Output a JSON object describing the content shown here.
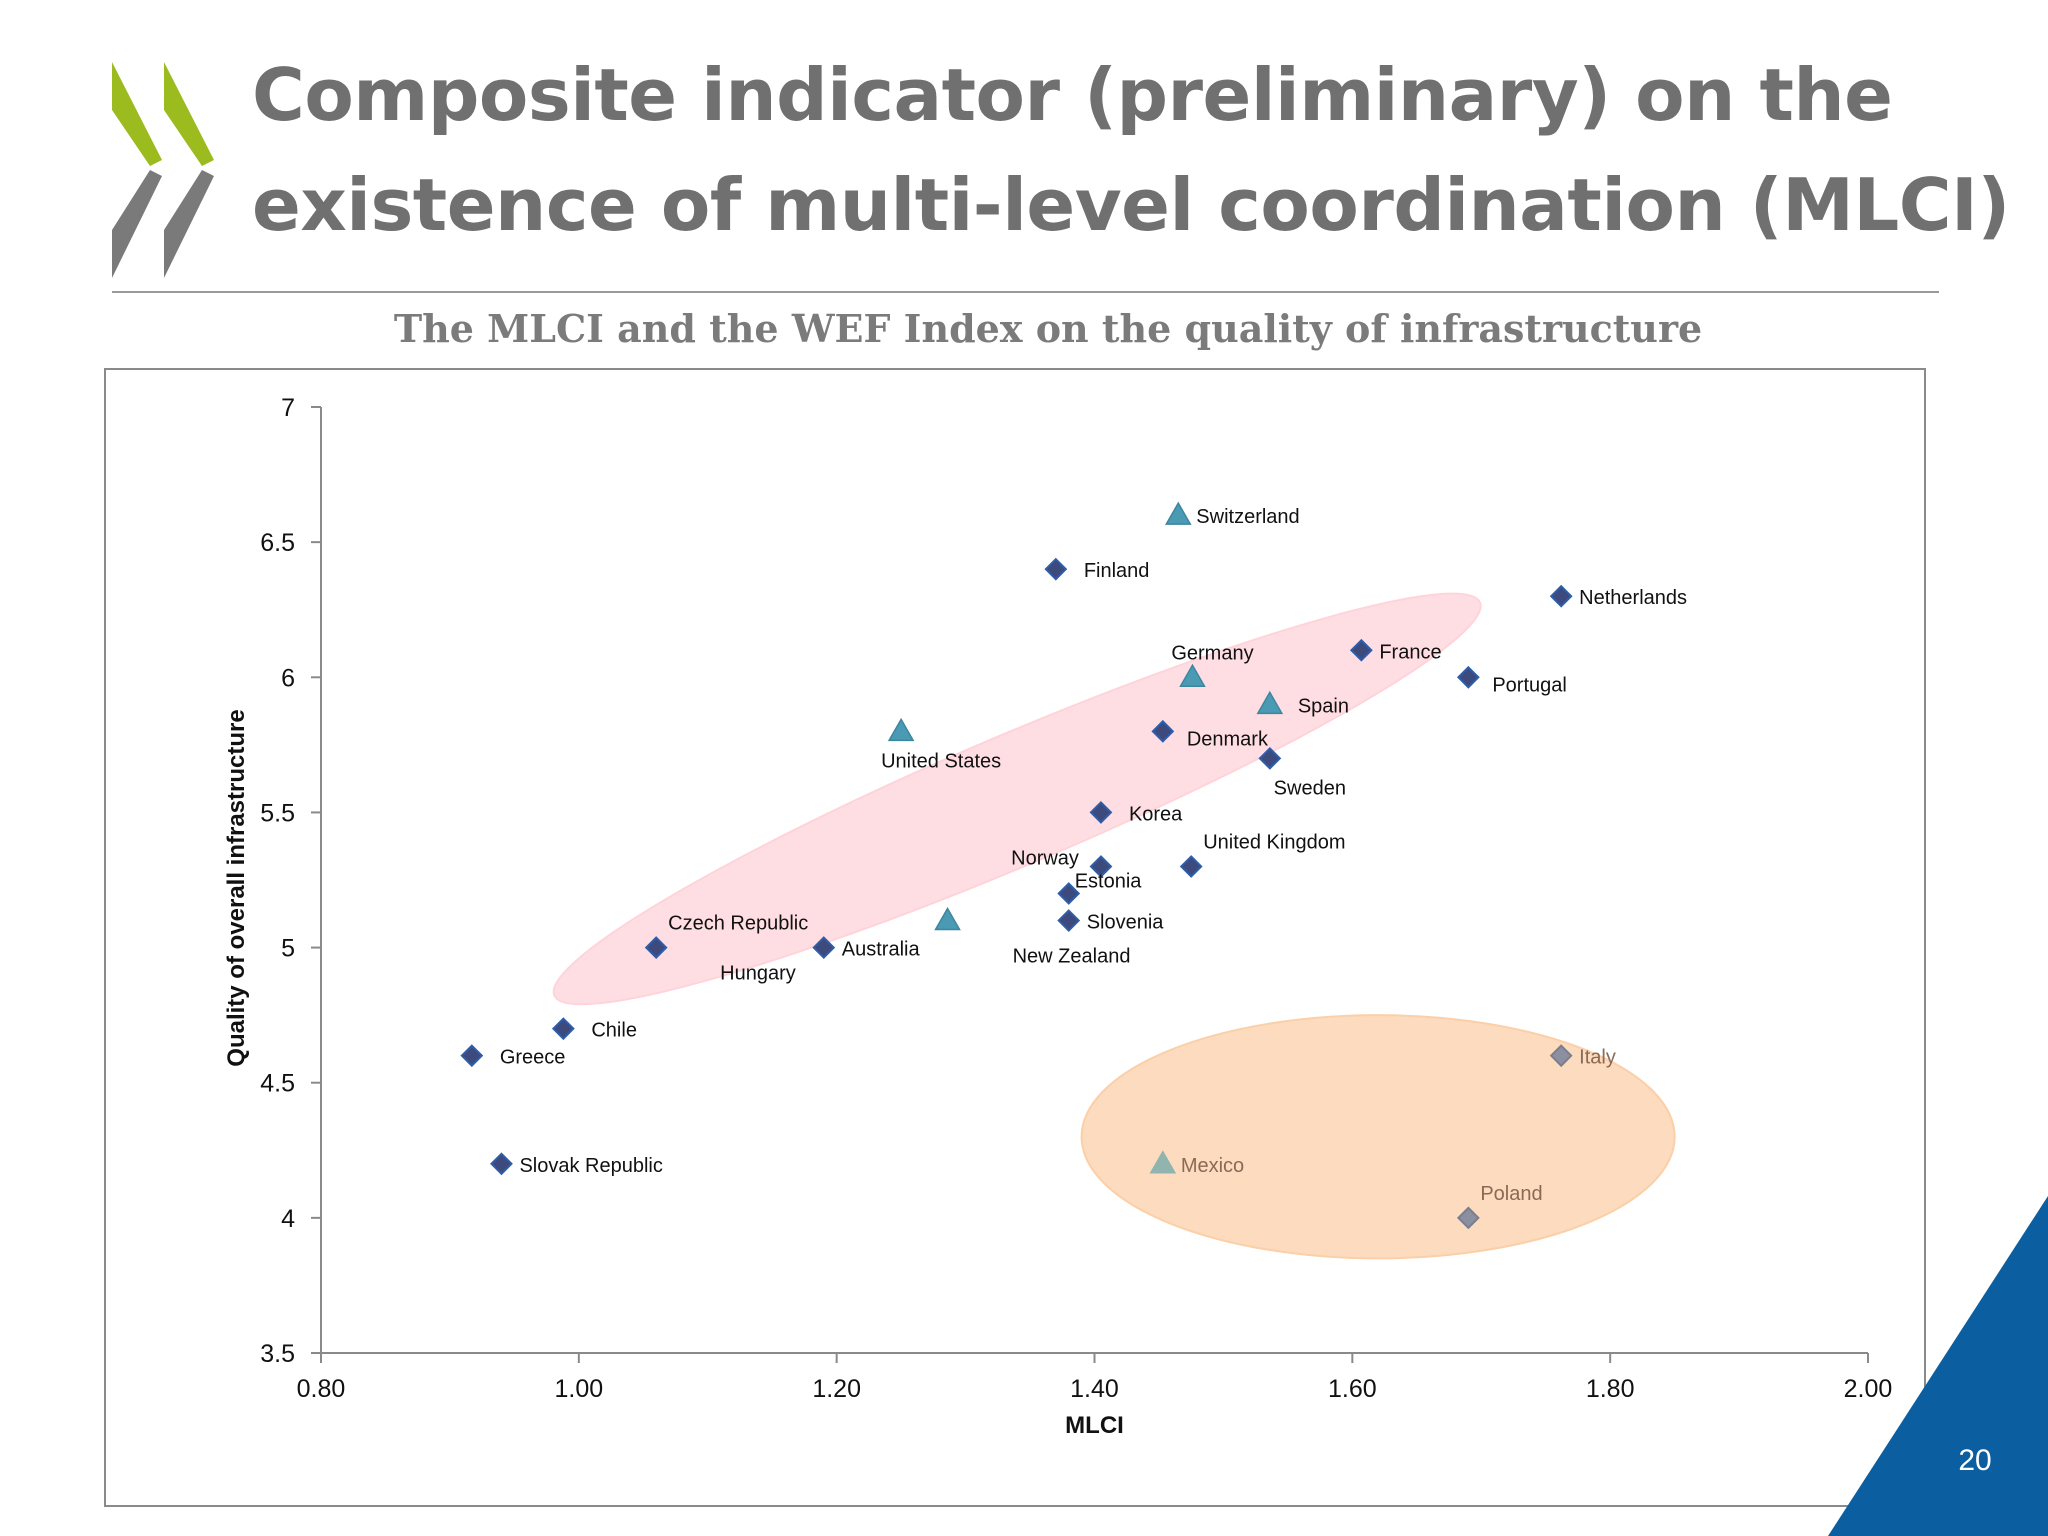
{
  "slide": {
    "title": "Composite indicator (preliminary) on the existence of multi-level coordination (MLCI)",
    "page_number": "20"
  },
  "colors": {
    "title": "#707070",
    "logo_green": "#9bbb1f",
    "logo_gray": "#7a7a7a",
    "diamond": "#3d4a7e",
    "triangle": "#4a9ab4",
    "upper_ellipse": "#ffd3da",
    "lower_ellipse": "#fbcfa8",
    "lower_marker": "#8b8fa0",
    "lower_label": "#8a6a55",
    "corner": "#0b5fa0"
  },
  "chart_data": {
    "type": "scatter",
    "title": "The MLCI and the WEF Index on the quality of infrastructure",
    "xlabel": "MLCI",
    "ylabel": "Quality of overall infrastructure",
    "xlim": [
      0.8,
      2.0
    ],
    "ylim": [
      3.5,
      7.0
    ],
    "xticks": [
      "0.80",
      "1.00",
      "1.20",
      "1.40",
      "1.60",
      "1.80",
      "2.00"
    ],
    "yticks": [
      "3.5",
      "4",
      "4.5",
      "5",
      "5.5",
      "6",
      "6.5",
      "7"
    ],
    "grid": false,
    "points": [
      {
        "label": "Switzerland",
        "x": 1.465,
        "y": 6.6,
        "marker": "triangle",
        "group": "upper",
        "label_side": "right"
      },
      {
        "label": "Finland",
        "x": 1.37,
        "y": 6.4,
        "marker": "diamond",
        "group": "upper",
        "label_side": "right-far"
      },
      {
        "label": "Netherlands",
        "x": 1.762,
        "y": 6.3,
        "marker": "diamond",
        "group": "upper",
        "label_side": "right"
      },
      {
        "label": "France",
        "x": 1.607,
        "y": 6.1,
        "marker": "diamond",
        "group": "upper",
        "label_side": "right"
      },
      {
        "label": "Germany",
        "x": 1.476,
        "y": 6.0,
        "marker": "triangle",
        "group": "upper",
        "label_side": "above"
      },
      {
        "label": "Portugal",
        "x": 1.69,
        "y": 6.0,
        "marker": "diamond",
        "group": "upper",
        "label_side": "below-right"
      },
      {
        "label": "Spain",
        "x": 1.536,
        "y": 5.9,
        "marker": "triangle",
        "group": "upper",
        "label_side": "right-far"
      },
      {
        "label": "United States",
        "x": 1.25,
        "y": 5.8,
        "marker": "triangle",
        "group": "upper",
        "label_side": "below"
      },
      {
        "label": "Denmark",
        "x": 1.453,
        "y": 5.8,
        "marker": "diamond",
        "group": "upper",
        "label_side": "below-right"
      },
      {
        "label": "Sweden",
        "x": 1.536,
        "y": 5.7,
        "marker": "diamond",
        "group": "upper",
        "label_side": "below"
      },
      {
        "label": "Korea",
        "x": 1.405,
        "y": 5.5,
        "marker": "diamond",
        "group": "upper",
        "label_side": "right-far"
      },
      {
        "label": "United Kingdom",
        "x": 1.475,
        "y": 5.3,
        "marker": "diamond",
        "group": "upper",
        "label_side": "above-right"
      },
      {
        "label": "Norway",
        "x": 1.405,
        "y": 5.3,
        "marker": "diamond",
        "group": "upper",
        "label_side": "above-left"
      },
      {
        "label": "Estonia",
        "x": 1.38,
        "y": 5.2,
        "marker": "diamond",
        "group": "upper",
        "label_side": "right-tight"
      },
      {
        "label": "Slovenia",
        "x": 1.38,
        "y": 5.1,
        "marker": "diamond",
        "group": "upper",
        "label_side": "right"
      },
      {
        "label": "New Zealand",
        "x": 1.286,
        "y": 5.1,
        "marker": "triangle",
        "group": "upper",
        "label_side": "far-below-right"
      },
      {
        "label": "Australia",
        "x": 1.19,
        "y": 5.0,
        "marker": "diamond",
        "group": "upper",
        "label_side": "right"
      },
      {
        "label": "Czech Republic",
        "x": 1.06,
        "y": 5.0,
        "marker": "diamond",
        "group": "upper",
        "label_side": "above-right"
      },
      {
        "label": "Hungary",
        "x": 1.19,
        "y": 5.0,
        "marker": "diamond",
        "group": "upper",
        "label_side": "below-left",
        "hidden_marker": true
      },
      {
        "label": "Chile",
        "x": 0.988,
        "y": 4.7,
        "marker": "diamond",
        "group": "upper",
        "label_side": "right-far"
      },
      {
        "label": "Greece",
        "x": 0.917,
        "y": 4.6,
        "marker": "diamond",
        "group": "upper",
        "label_side": "right-far"
      },
      {
        "label": "Slovak Republic",
        "x": 0.94,
        "y": 4.2,
        "marker": "diamond",
        "group": "outlier",
        "label_side": "right"
      },
      {
        "label": "Italy",
        "x": 1.762,
        "y": 4.6,
        "marker": "diamond",
        "group": "lower",
        "label_side": "right"
      },
      {
        "label": "Mexico",
        "x": 1.453,
        "y": 4.2,
        "marker": "triangle",
        "group": "lower",
        "label_side": "right"
      },
      {
        "label": "Poland",
        "x": 1.69,
        "y": 4.0,
        "marker": "diamond",
        "group": "lower",
        "label_side": "above-right"
      }
    ],
    "ellipses": [
      {
        "name": "upper-cluster-ellipse",
        "cx": 1.34,
        "cy": 5.55,
        "rx": 0.39,
        "ry": 0.24,
        "angle_deg": -23,
        "color": "#ffd3da"
      },
      {
        "name": "lower-cluster-ellipse",
        "cx": 1.62,
        "cy": 4.3,
        "rx": 0.23,
        "ry": 0.45,
        "angle_deg": 0,
        "color": "#fbcfa8"
      }
    ]
  }
}
